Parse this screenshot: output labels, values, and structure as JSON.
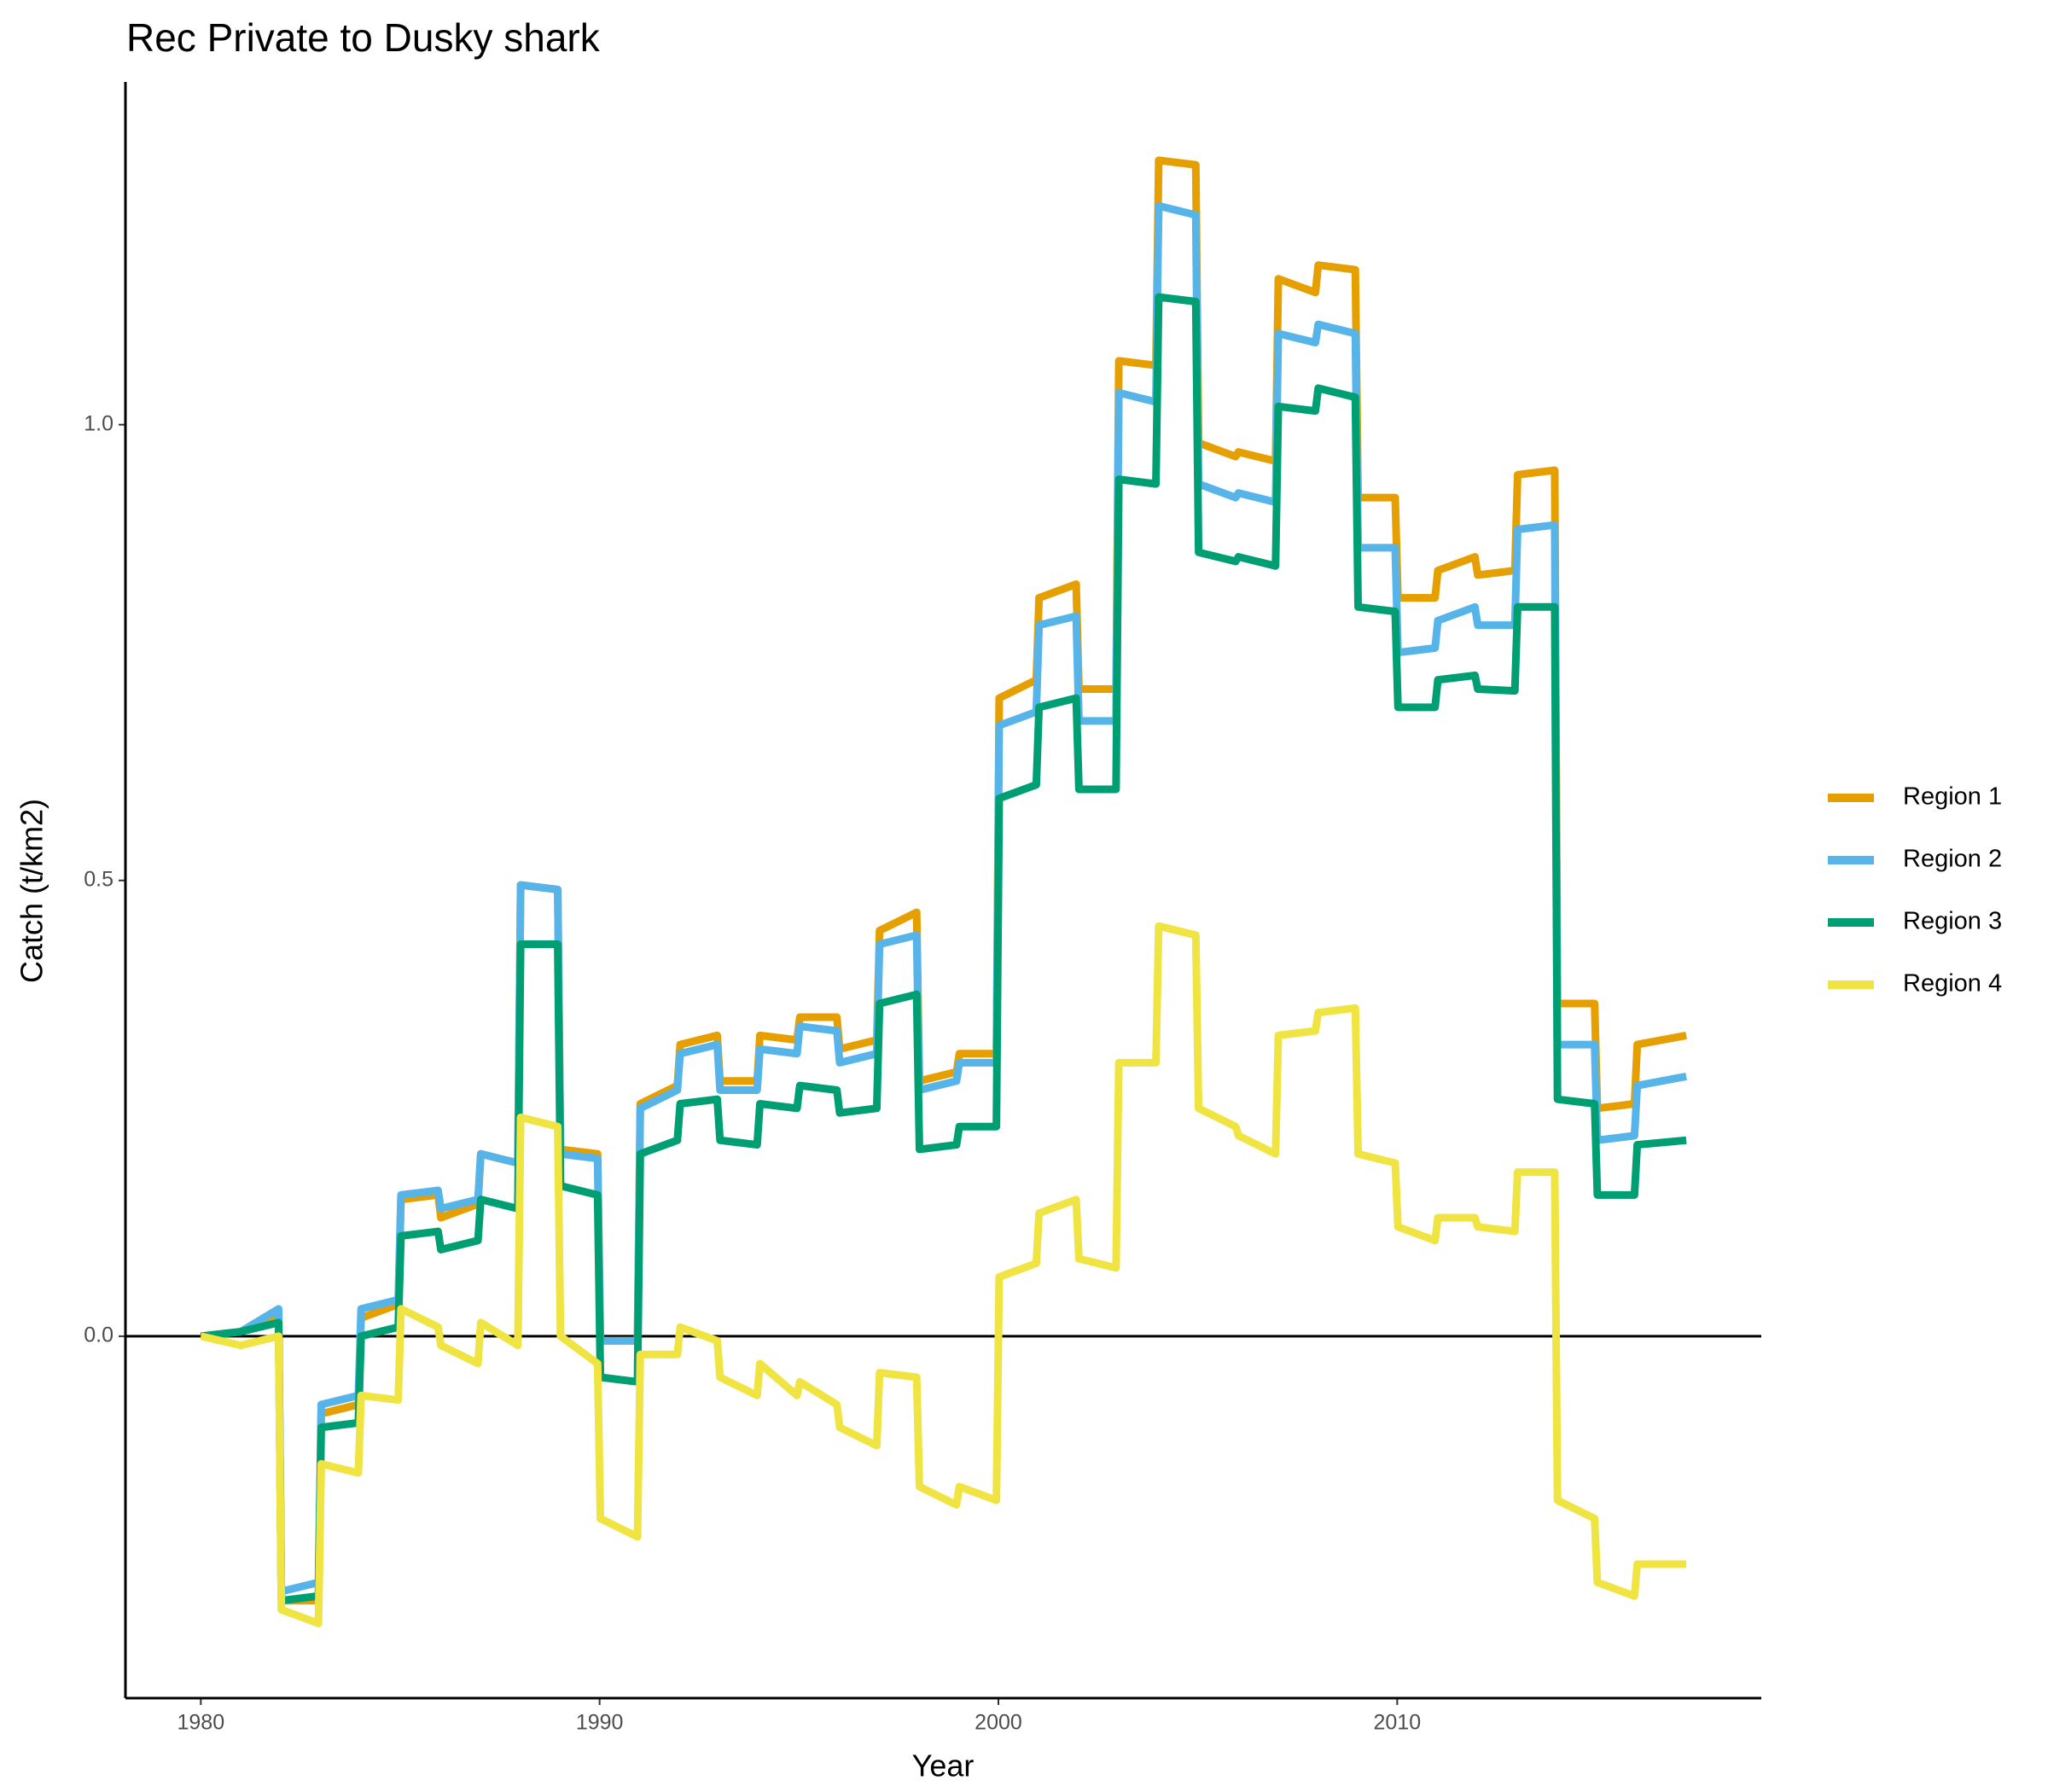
{
  "chart_data": {
    "type": "line",
    "title": "Rec Private to Dusky shark",
    "x_label": "Year",
    "y_label": "Catch (t/km2)",
    "x": [
      1980,
      1981,
      1981.95,
      1982.02,
      1982.95,
      1983.02,
      1983.95,
      1984.02,
      1984.95,
      1985.02,
      1985.95,
      1986.02,
      1986.95,
      1987.02,
      1987.95,
      1988.02,
      1988.95,
      1989.02,
      1989.95,
      1990.02,
      1990.95,
      1991.02,
      1991.95,
      1992.02,
      1992.95,
      1993.02,
      1993.95,
      1994.02,
      1994.95,
      1995.02,
      1995.95,
      1996.02,
      1996.95,
      1997.02,
      1997.95,
      1998.02,
      1998.95,
      1999.02,
      1999.95,
      2000.02,
      2000.95,
      2001.02,
      2001.95,
      2002.02,
      2002.95,
      2003.02,
      2003.95,
      2004.02,
      2004.95,
      2005.02,
      2005.95,
      2006.02,
      2006.95,
      2007.02,
      2007.95,
      2008.02,
      2008.95,
      2009.02,
      2009.95,
      2010.02,
      2010.95,
      2011.02,
      2011.95,
      2012.02,
      2012.95,
      2013.02,
      2013.95,
      2014.02,
      2014.95,
      2015.02,
      2015.95,
      2016.02,
      2017.25
    ],
    "series": [
      {
        "name": "Region 1",
        "color": "#e69f00",
        "values": [
          0,
          0.005,
          0.025,
          -0.29,
          -0.29,
          -0.085,
          -0.075,
          0.02,
          0.035,
          0.15,
          0.155,
          0.13,
          0.145,
          0.2,
          0.19,
          0.495,
          0.49,
          0.205,
          0.2,
          -0.005,
          -0.005,
          0.255,
          0.275,
          0.32,
          0.33,
          0.28,
          0.28,
          0.33,
          0.325,
          0.35,
          0.35,
          0.315,
          0.325,
          0.445,
          0.465,
          0.28,
          0.29,
          0.31,
          0.31,
          0.7,
          0.72,
          0.81,
          0.825,
          0.71,
          0.71,
          1.07,
          1.065,
          1.29,
          1.285,
          0.98,
          0.965,
          0.97,
          0.96,
          1.16,
          1.145,
          1.175,
          1.17,
          0.92,
          0.92,
          0.81,
          0.81,
          0.84,
          0.855,
          0.835,
          0.84,
          0.945,
          0.95,
          0.365,
          0.365,
          0.25,
          0.255,
          0.32,
          0.33
        ]
      },
      {
        "name": "Region 2",
        "color": "#56b4e9",
        "values": [
          0,
          0.005,
          0.03,
          -0.28,
          -0.27,
          -0.075,
          -0.065,
          0.03,
          0.04,
          0.155,
          0.16,
          0.14,
          0.15,
          0.2,
          0.19,
          0.495,
          0.49,
          0.2,
          0.195,
          -0.005,
          -0.005,
          0.25,
          0.27,
          0.31,
          0.32,
          0.27,
          0.27,
          0.315,
          0.31,
          0.34,
          0.335,
          0.3,
          0.31,
          0.43,
          0.44,
          0.27,
          0.28,
          0.3,
          0.3,
          0.67,
          0.685,
          0.78,
          0.79,
          0.675,
          0.675,
          1.035,
          1.025,
          1.24,
          1.23,
          0.935,
          0.92,
          0.925,
          0.915,
          1.1,
          1.09,
          1.11,
          1.1,
          0.865,
          0.865,
          0.75,
          0.755,
          0.785,
          0.8,
          0.78,
          0.78,
          0.885,
          0.89,
          0.32,
          0.32,
          0.215,
          0.22,
          0.275,
          0.285
        ]
      },
      {
        "name": "Region 3",
        "color": "#009e73",
        "values": [
          0,
          0.005,
          0.015,
          -0.29,
          -0.285,
          -0.1,
          -0.095,
          0.0,
          0.01,
          0.11,
          0.115,
          0.095,
          0.105,
          0.15,
          0.14,
          0.43,
          0.43,
          0.165,
          0.155,
          -0.045,
          -0.05,
          0.2,
          0.215,
          0.255,
          0.26,
          0.215,
          0.21,
          0.255,
          0.25,
          0.275,
          0.27,
          0.245,
          0.25,
          0.365,
          0.375,
          0.205,
          0.21,
          0.23,
          0.23,
          0.59,
          0.605,
          0.69,
          0.7,
          0.6,
          0.6,
          0.94,
          0.935,
          1.14,
          1.135,
          0.86,
          0.85,
          0.855,
          0.845,
          1.02,
          1.015,
          1.04,
          1.03,
          0.8,
          0.795,
          0.69,
          0.69,
          0.72,
          0.725,
          0.71,
          0.708,
          0.8,
          0.8,
          0.26,
          0.255,
          0.155,
          0.155,
          0.21,
          0.215
        ]
      },
      {
        "name": "Region 4",
        "color": "#f0e442",
        "values": [
          0,
          -0.01,
          0.0,
          -0.3,
          -0.315,
          -0.14,
          -0.15,
          -0.065,
          -0.07,
          0.03,
          0.01,
          -0.01,
          -0.03,
          0.015,
          -0.01,
          0.24,
          0.23,
          0.0,
          -0.03,
          -0.2,
          -0.22,
          -0.02,
          -0.02,
          0.01,
          -0.005,
          -0.045,
          -0.065,
          -0.03,
          -0.065,
          -0.05,
          -0.075,
          -0.1,
          -0.12,
          -0.04,
          -0.045,
          -0.165,
          -0.185,
          -0.165,
          -0.18,
          0.065,
          0.08,
          0.135,
          0.15,
          0.085,
          0.075,
          0.3,
          0.3,
          0.45,
          0.44,
          0.25,
          0.23,
          0.22,
          0.2,
          0.33,
          0.335,
          0.355,
          0.36,
          0.2,
          0.19,
          0.12,
          0.105,
          0.13,
          0.13,
          0.12,
          0.115,
          0.18,
          0.18,
          -0.18,
          -0.2,
          -0.27,
          -0.285,
          -0.25,
          -0.25
        ]
      }
    ],
    "xlim": [
      1978.11,
      2019.13
    ],
    "ylim": [
      -0.397,
      1.376
    ],
    "xticks": [
      1980,
      1990,
      2000,
      2010
    ],
    "yticks": [
      {
        "value": 0,
        "label": "0.0"
      },
      {
        "value": 0.5,
        "label": "0.5"
      },
      {
        "value": 1,
        "label": "1.0"
      }
    ],
    "hline": 0,
    "legend": "right",
    "grid": false
  }
}
